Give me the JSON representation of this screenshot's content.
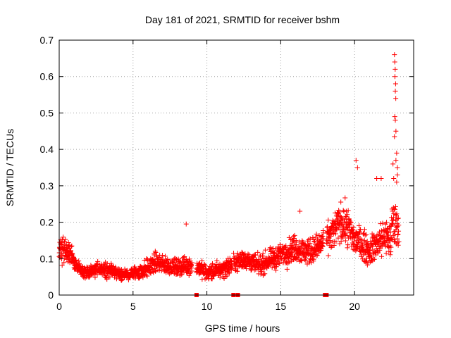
{
  "chart_data": {
    "type": "scatter",
    "title": "Day 181 of 2021, SRMTID for receiver bshm",
    "xlabel": "GPS time / hours",
    "ylabel": "SRMTID / TECUs",
    "xlim": [
      0,
      24
    ],
    "ylim": [
      0,
      0.7
    ],
    "x_ticks": [
      0,
      5,
      10,
      15,
      20
    ],
    "x_tick_labels": [
      "0",
      "5",
      "10",
      "15",
      "20"
    ],
    "y_ticks": [
      0,
      0.1,
      0.2,
      0.3,
      0.4,
      0.5,
      0.6,
      0.7
    ],
    "y_tick_labels": [
      "0",
      "0.1",
      "0.2",
      "0.3",
      "0.4",
      "0.5",
      "0.6",
      "0.7"
    ],
    "grid": true,
    "colors": {
      "series": "#ff0000",
      "axes": "#000000",
      "grid": "#a0a0a0"
    },
    "series": [
      {
        "name": "SRMTID",
        "marker": "plus",
        "profile": {
          "x": [
            0,
            0.2,
            0.5,
            0.8,
            1.2,
            1.6,
            2,
            2.5,
            3,
            3.5,
            4,
            4.5,
            5,
            5.5,
            6,
            6.5,
            7,
            7.5,
            8,
            8.5,
            9,
            9.5,
            10,
            10.5,
            11,
            11.5,
            12,
            12.5,
            13,
            13.5,
            14,
            14.5,
            15,
            15.5,
            16,
            16.5,
            17,
            17.5,
            18,
            18.5,
            19,
            19.5,
            20,
            20.5,
            21,
            21.5,
            22,
            22.4,
            22.6,
            22.8,
            23
          ],
          "mean": [
            0.12,
            0.13,
            0.12,
            0.11,
            0.08,
            0.06,
            0.065,
            0.07,
            0.07,
            0.065,
            0.06,
            0.055,
            0.06,
            0.065,
            0.075,
            0.09,
            0.085,
            0.08,
            0.075,
            0.08,
            0.08,
            0.075,
            0.06,
            0.065,
            0.07,
            0.08,
            0.09,
            0.1,
            0.09,
            0.08,
            0.09,
            0.1,
            0.11,
            0.12,
            0.13,
            0.12,
            0.12,
            0.13,
            0.15,
            0.17,
            0.2,
            0.19,
            0.15,
            0.14,
            0.12,
            0.14,
            0.16,
            0.15,
            0.2,
            0.2,
            0.18
          ],
          "spread": [
            0.05,
            0.05,
            0.05,
            0.04,
            0.025,
            0.02,
            0.025,
            0.025,
            0.025,
            0.025,
            0.02,
            0.02,
            0.025,
            0.03,
            0.035,
            0.035,
            0.035,
            0.03,
            0.03,
            0.035,
            0.03,
            0.03,
            0.03,
            0.03,
            0.03,
            0.035,
            0.035,
            0.035,
            0.035,
            0.035,
            0.035,
            0.04,
            0.04,
            0.045,
            0.05,
            0.05,
            0.05,
            0.05,
            0.05,
            0.06,
            0.07,
            0.07,
            0.06,
            0.06,
            0.05,
            0.06,
            0.07,
            0.07,
            0.1,
            0.08,
            0.07
          ]
        },
        "gaps": [
          [
            9.0,
            9.3
          ],
          [
            11.7,
            11.8
          ],
          [
            17.9,
            18.1
          ]
        ],
        "outliers": [
          {
            "x": 8.6,
            "y": 0.195
          },
          {
            "x": 16.3,
            "y": 0.23
          },
          {
            "x": 20.1,
            "y": 0.37
          },
          {
            "x": 20.2,
            "y": 0.35
          },
          {
            "x": 21.5,
            "y": 0.32
          },
          {
            "x": 21.8,
            "y": 0.32
          },
          {
            "x": 22.7,
            "y": 0.66
          },
          {
            "x": 22.72,
            "y": 0.64
          },
          {
            "x": 22.75,
            "y": 0.62
          },
          {
            "x": 22.73,
            "y": 0.6
          },
          {
            "x": 22.78,
            "y": 0.58
          },
          {
            "x": 22.76,
            "y": 0.56
          },
          {
            "x": 22.79,
            "y": 0.54
          },
          {
            "x": 22.72,
            "y": 0.49
          },
          {
            "x": 22.76,
            "y": 0.48
          },
          {
            "x": 22.8,
            "y": 0.45
          },
          {
            "x": 22.7,
            "y": 0.435
          },
          {
            "x": 22.85,
            "y": 0.39
          },
          {
            "x": 22.8,
            "y": 0.37
          },
          {
            "x": 22.9,
            "y": 0.35
          },
          {
            "x": 22.9,
            "y": 0.33
          },
          {
            "x": 22.85,
            "y": 0.31
          },
          {
            "x": 22.6,
            "y": 0.36
          },
          {
            "x": 22.65,
            "y": 0.32
          }
        ],
        "zero_markers": [
          9.3,
          11.8,
          12.1,
          18.0,
          18.1
        ]
      }
    ]
  }
}
